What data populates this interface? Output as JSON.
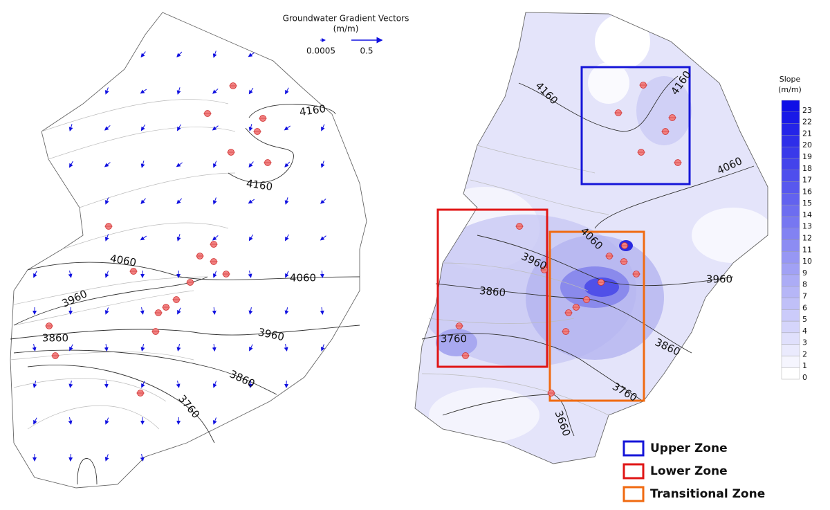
{
  "left_map": {
    "vector_legend": {
      "title": "Groundwater Gradient Vectors",
      "unit": "(m/m)",
      "scale_labels": [
        "0.0005",
        "0.5"
      ]
    },
    "contour_labels": [
      "4160",
      "4160",
      "4060",
      "4060",
      "3960",
      "3960",
      "3860",
      "3860",
      "3760"
    ]
  },
  "right_map": {
    "contour_labels": [
      "4160",
      "4160",
      "4060",
      "4060",
      "3960",
      "3960",
      "3860",
      "3860",
      "3760",
      "3760",
      "3660"
    ],
    "slope_legend": {
      "title": "Slope",
      "unit": "(m/m)",
      "levels": [
        0,
        1,
        2,
        3,
        4,
        5,
        6,
        7,
        8,
        9,
        10,
        11,
        12,
        13,
        14,
        15,
        16,
        17,
        18,
        19,
        20,
        21,
        22,
        23
      ]
    },
    "zone_legend": [
      "Upper Zone",
      "Lower Zone",
      "Transitional Zone"
    ]
  }
}
